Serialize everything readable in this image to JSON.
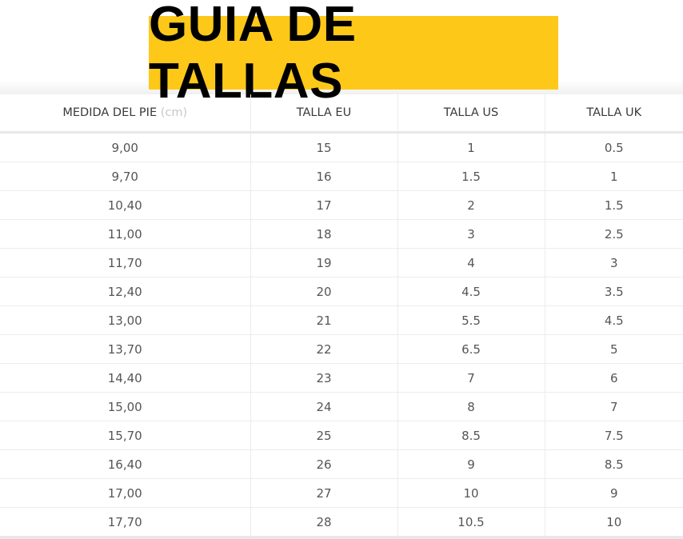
{
  "title": "GUIA DE TALLAS",
  "colors": {
    "title_bg": "#fec819"
  },
  "headers": {
    "foot": "MEDIDA DEL PIE",
    "foot_unit": "(cm)",
    "eu": "TALLA EU",
    "us": "TALLA US",
    "uk": "TALLA UK"
  },
  "rows": [
    [
      "9,00",
      "15",
      "1",
      "0.5"
    ],
    [
      "9,70",
      "16",
      "1.5",
      "1"
    ],
    [
      "10,40",
      "17",
      "2",
      "1.5"
    ],
    [
      "11,00",
      "18",
      "3",
      "2.5"
    ],
    [
      "11,70",
      "19",
      "4",
      "3"
    ],
    [
      "12,40",
      "20",
      "4.5",
      "3.5"
    ],
    [
      "13,00",
      "21",
      "5.5",
      "4.5"
    ],
    [
      "13,70",
      "22",
      "6.5",
      "5"
    ],
    [
      "14,40",
      "23",
      "7",
      "6"
    ],
    [
      "15,00",
      "24",
      "8",
      "7"
    ],
    [
      "15,70",
      "25",
      "8.5",
      "7.5"
    ],
    [
      "16,40",
      "26",
      "9",
      "8.5"
    ],
    [
      "17,00",
      "27",
      "10",
      "9"
    ],
    [
      "17,70",
      "28",
      "10.5",
      "10"
    ]
  ]
}
